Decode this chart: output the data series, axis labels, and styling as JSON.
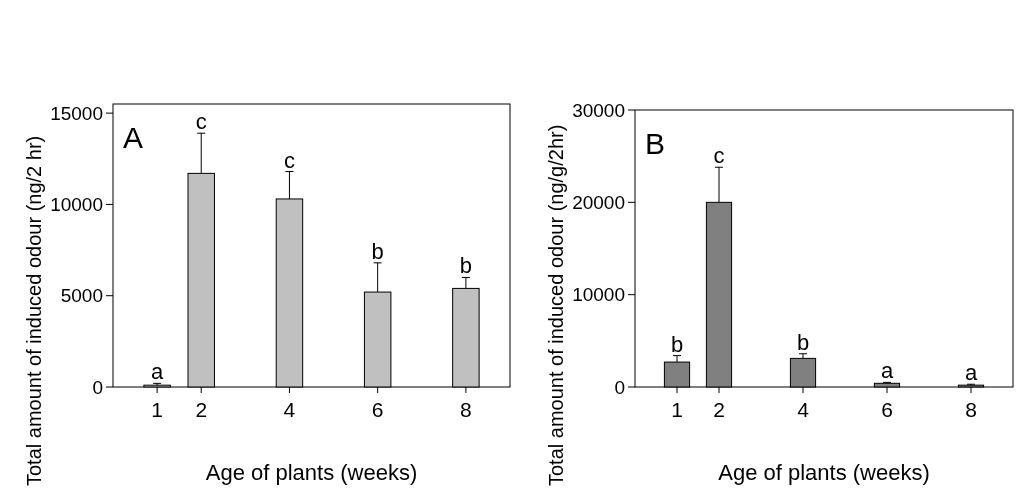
{
  "chart_data": [
    {
      "type": "bar",
      "x": [
        1,
        2,
        4,
        6,
        8
      ],
      "values": [
        100,
        11700,
        10300,
        5200,
        5400
      ],
      "errors": [
        [
          100,
          200
        ],
        [
          11700,
          13900
        ],
        [
          10300,
          11800
        ],
        [
          5200,
          6800
        ],
        [
          5400,
          6000
        ]
      ],
      "color": "#c0c0c0",
      "xlim": [
        0,
        9
      ],
      "xticks": [
        1,
        2,
        4,
        6,
        8
      ],
      "ylim": [
        0,
        15500
      ],
      "yticks": [
        0,
        5000,
        10000,
        15000
      ],
      "xlabel": "Age of plants (weeks)",
      "ylabel": "Total amount of induced odour (ng/2 hr)",
      "annotations": [
        "A",
        "a",
        "c",
        "c",
        "b",
        "b"
      ]
    },
    {
      "type": "bar",
      "x": [
        1,
        2,
        4,
        6,
        8
      ],
      "values": [
        2700,
        20000,
        3100,
        400,
        200
      ],
      "errors": [
        [
          2700,
          3400
        ],
        [
          20000,
          23800
        ],
        [
          3100,
          3600
        ],
        [
          400,
          500
        ],
        [
          200,
          300
        ]
      ],
      "color": "#808080",
      "xlim": [
        0,
        9
      ],
      "xticks": [
        1,
        2,
        4,
        6,
        8
      ],
      "ylim": [
        0,
        30000
      ],
      "yticks": [
        0,
        10000,
        20000,
        30000
      ],
      "xlabel": "Age of plants (weeks)",
      "ylabel": "Total amount of induced odour (ng/g/2hr)",
      "annotations": [
        "B",
        "b",
        "c",
        "b",
        "a",
        "a"
      ]
    }
  ]
}
